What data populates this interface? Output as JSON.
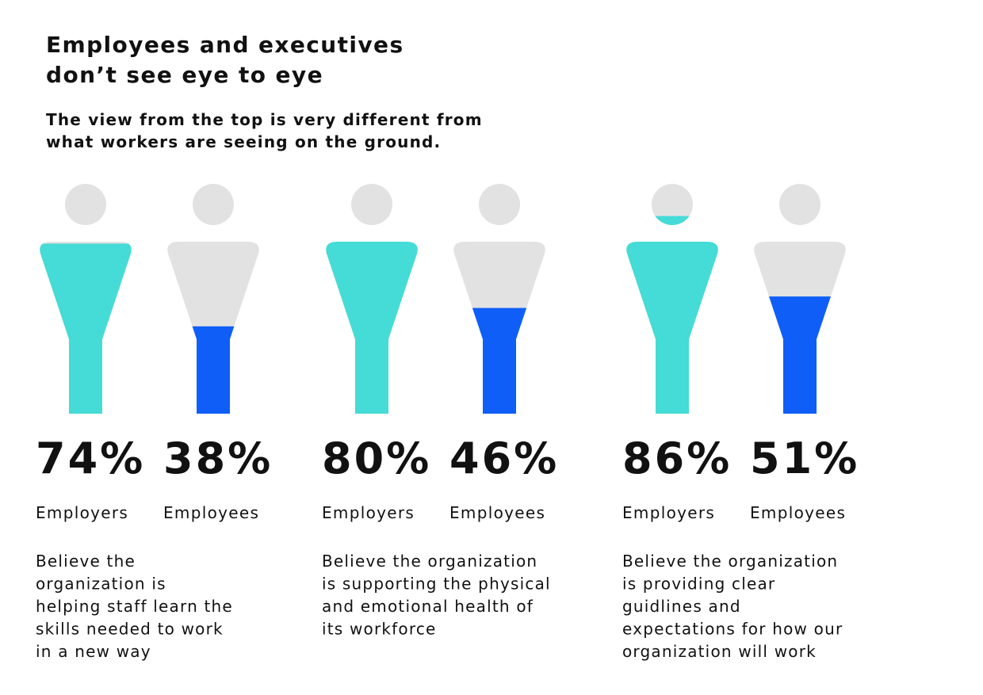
{
  "title": [
    "Employees and executives",
    "don’t see eye to eye"
  ],
  "subtitle": [
    "The view from the top is very different from",
    "what workers are seeing on the ground."
  ],
  "groups": [
    {
      "items": [
        {
          "label": "Employers",
          "value": 74,
          "value_label": "74%",
          "color": "#45dbd6"
        },
        {
          "label": "Employees",
          "value": 38,
          "value_label": "38%",
          "color": "#0f5ef7"
        }
      ],
      "description": [
        "Believe the",
        "organization is",
        "helping staff learn the",
        "skills needed to work",
        "in a new way"
      ]
    },
    {
      "items": [
        {
          "label": "Employers",
          "value": 80,
          "value_label": "80%",
          "color": "#45dbd6"
        },
        {
          "label": "Employees",
          "value": 46,
          "value_label": "46%",
          "color": "#0f5ef7"
        }
      ],
      "description": [
        "Believe the organization",
        "is supporting the physical",
        "and emotional health of",
        "its workforce"
      ]
    },
    {
      "items": [
        {
          "label": "Employers",
          "value": 86,
          "value_label": "86%",
          "color": "#45dbd6"
        },
        {
          "label": "Employees",
          "value": 51,
          "value_label": "51%",
          "color": "#0f5ef7"
        }
      ],
      "description": [
        "Believe the organization",
        "is providing clear",
        "guidlines and",
        "expectations for how our",
        "organization will work"
      ]
    }
  ]
}
